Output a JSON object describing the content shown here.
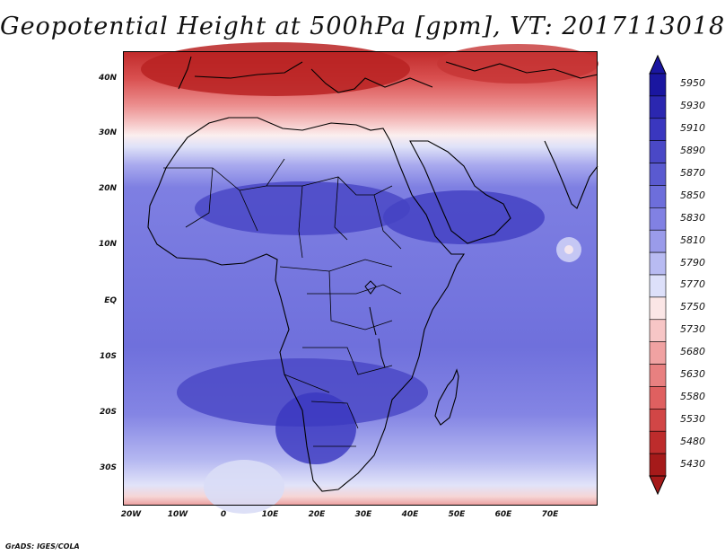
{
  "title": "Geopotential Height at 500hPa [gpm], VT: 2017113018",
  "credit": "GrADS: IGES/COLA",
  "latitude_labels": [
    "40N",
    "30N",
    "20N",
    "10N",
    "EQ",
    "10S",
    "20S",
    "30S"
  ],
  "longitude_labels": [
    "20W",
    "10W",
    "0",
    "10E",
    "20E",
    "30E",
    "40E",
    "50E",
    "60E",
    "70E"
  ],
  "colorbar": {
    "levels": [
      "5950",
      "5930",
      "5910",
      "5890",
      "5870",
      "5850",
      "5830",
      "5810",
      "5790",
      "5770",
      "5750",
      "5730",
      "5680",
      "5630",
      "5580",
      "5530",
      "5480",
      "5430"
    ],
    "colors": [
      "#1a16a0",
      "#2b27b0",
      "#3a37bf",
      "#4a48c6",
      "#5a5ad0",
      "#6d6edb",
      "#8181e3",
      "#9a9bea",
      "#b8bbf2",
      "#dde0fa",
      "#fbe6e6",
      "#f7c6c6",
      "#f0a2a2",
      "#e88080",
      "#df6060",
      "#d14646",
      "#bd2c2c",
      "#a51a1a"
    ]
  },
  "field_colors": {
    "north_deep": "#b62222",
    "north_mid": "#d94d4d",
    "north_light": "#ee9d9d",
    "transition": "#f7dede",
    "south_light": "#d9ddf6",
    "background": "#7a7ae0",
    "high_core": "#4240c2",
    "land": "#000000"
  }
}
